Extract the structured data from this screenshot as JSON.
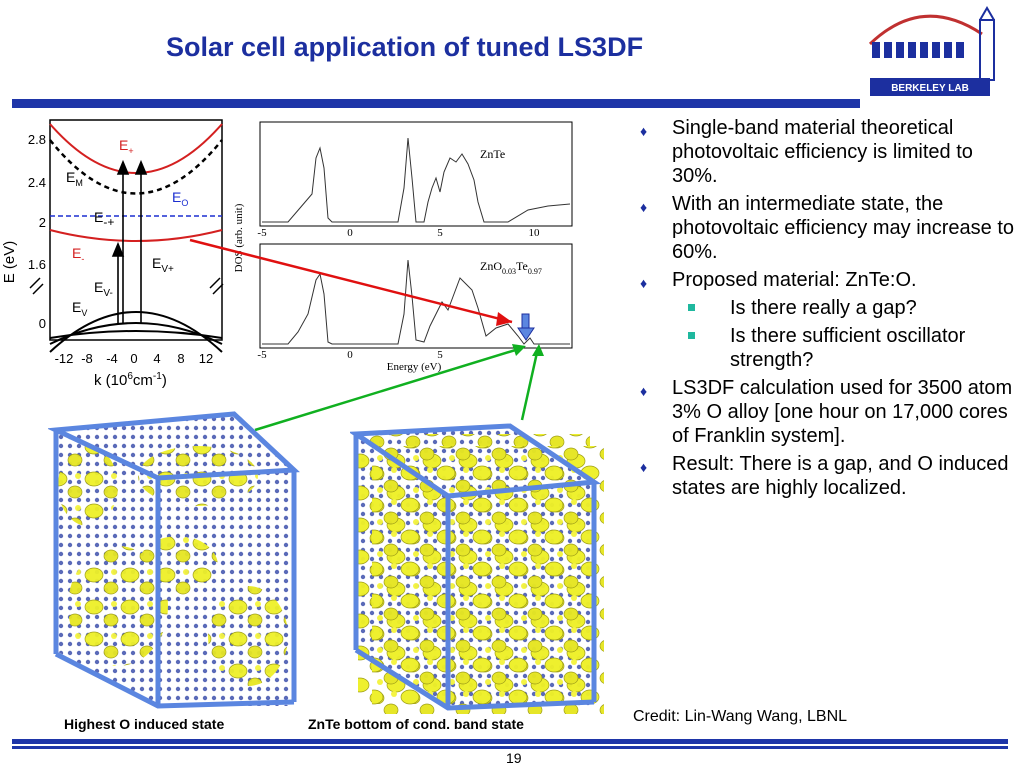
{
  "title": "Solar cell application of tuned LS3DF",
  "page_number": "19",
  "logo_text": "BERKELEY LAB",
  "bullets": [
    {
      "level": 1,
      "text": "Single-band material theoretical photovoltaic efficiency is limited to 30%."
    },
    {
      "level": 1,
      "text": "With an intermediate state, the photovoltaic efficiency may increase to 60%."
    },
    {
      "level": 1,
      "text": "Proposed material: ZnTe:O."
    },
    {
      "level": 2,
      "text": "Is there really a gap?"
    },
    {
      "level": 2,
      "text": "Is there sufficient oscillator strength?"
    },
    {
      "level": 1,
      "text": "LS3DF calculation used for 3500 atom 3% O alloy [one hour on 17,000 cores of Franklin system]."
    },
    {
      "level": 1,
      "text": "Result:  There is a gap, and O induced states are highly localized."
    }
  ],
  "credit": "Credit:  Lin-Wang Wang, LBNL",
  "captions": {
    "left": "Highest O induced state",
    "right": "ZnTe bottom of cond. band state"
  },
  "band_diagram": {
    "y_label": "E (eV)",
    "y_ticks": [
      "2.8",
      "2.4",
      "2",
      "1.6",
      "0"
    ],
    "x_ticks": [
      "-12",
      "-8",
      "-4",
      "0",
      "4",
      "8",
      "12"
    ],
    "x_label_k": "k (10",
    "x_label_exp1": "6",
    "x_label_mid": "cm",
    "x_label_exp2": "-1",
    "x_label_end": ")",
    "labels": {
      "e_plus": "E",
      "e_plus_sub": "+",
      "e_m": "E",
      "e_m_sub": "M",
      "e_o": "E",
      "e_o_sub": "O",
      "e_minus_plus": "E",
      "e_minus_plus_sub": "-+",
      "e_minus": "E",
      "e_minus_sub": "-",
      "e_v_plus": "E",
      "e_v_plus_sub": "V+",
      "e_v_minus": "E",
      "e_v_minus_sub": "V-",
      "e_v": "E",
      "e_v_sub": "V"
    }
  },
  "dos_plot": {
    "y_label": "DOS (arb. unit)",
    "x_label": "Energy (eV)",
    "top_label": "ZnTe",
    "bottom_label_main": "ZnO",
    "bottom_label_sub1": "0.03",
    "bottom_label_mid": "Te",
    "bottom_label_sub2": "0.97",
    "top_x_ticks": [
      "-5",
      "0",
      "5",
      "10"
    ],
    "bottom_x_ticks": [
      "-5",
      "0",
      "5"
    ]
  },
  "colors": {
    "title": "#1c2f9f",
    "bar": "#1e35a8",
    "red_arrow": "#e01010",
    "green_arrow": "#10b020",
    "box_edge": "#5b86e0",
    "isosurface": "#f0f020"
  }
}
